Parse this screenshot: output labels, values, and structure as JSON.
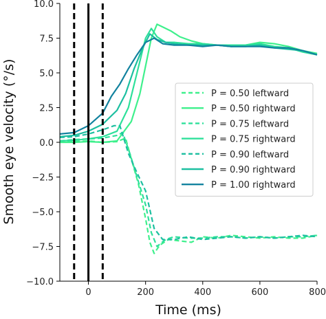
{
  "chart_data": {
    "type": "line",
    "xlabel": "Time (ms)",
    "ylabel": "Smooth eye velocity (°/s)",
    "xlim": [
      -100,
      800
    ],
    "ylim": [
      -10,
      10
    ],
    "x_ticks": [
      0,
      200,
      400,
      600,
      800
    ],
    "y_ticks": [
      -10.0,
      -7.5,
      -5.0,
      -2.5,
      0.0,
      2.5,
      5.0,
      7.5,
      10.0
    ],
    "x_tick_labels": [
      "0",
      "200",
      "400",
      "600",
      "800"
    ],
    "y_tick_labels": [
      "−10.0",
      "−7.5",
      "−5.0",
      "−2.5",
      "0.0",
      "2.5",
      "5.0",
      "7.5",
      "10.0"
    ],
    "legend_position": "center-right",
    "grid": false,
    "vertical_lines": [
      {
        "x": -50,
        "style": "dashed",
        "color": "#000000"
      },
      {
        "x": 0,
        "style": "solid",
        "color": "#000000"
      },
      {
        "x": 50,
        "style": "dashed",
        "color": "#000000"
      }
    ],
    "series": [
      {
        "name": "P = 0.50 leftward",
        "color": "#3ef08c",
        "dash": "dashed",
        "x": [
          -100,
          -50,
          0,
          50,
          100,
          130,
          150,
          175,
          200,
          215,
          230,
          250,
          280,
          320,
          360,
          400,
          450,
          500,
          550,
          600,
          650,
          700,
          750,
          800
        ],
        "y": [
          0.0,
          0.05,
          0.1,
          0.0,
          0.05,
          0.3,
          -1.2,
          -3.0,
          -5.5,
          -7.2,
          -8.0,
          -7.4,
          -7.0,
          -7.1,
          -7.2,
          -6.8,
          -6.9,
          -6.7,
          -6.8,
          -6.9,
          -6.8,
          -6.9,
          -6.9,
          -6.7
        ]
      },
      {
        "name": "P = 0.50 rightward",
        "color": "#3ef08c",
        "dash": "solid",
        "x": [
          -100,
          -50,
          0,
          50,
          100,
          150,
          180,
          200,
          220,
          240,
          260,
          290,
          320,
          360,
          400,
          450,
          500,
          550,
          600,
          650,
          700,
          750,
          800
        ],
        "y": [
          0.0,
          0.0,
          0.05,
          0.0,
          0.1,
          1.5,
          3.5,
          5.5,
          7.5,
          8.5,
          8.3,
          8.0,
          7.6,
          7.3,
          7.1,
          7.0,
          6.9,
          7.0,
          7.2,
          7.1,
          6.9,
          6.6,
          6.4
        ]
      },
      {
        "name": "P = 0.75 leftward",
        "color": "#2de09a",
        "dash": "dashed",
        "x": [
          -100,
          -50,
          0,
          50,
          100,
          120,
          145,
          170,
          200,
          220,
          240,
          270,
          300,
          350,
          400,
          450,
          500,
          550,
          600,
          650,
          700,
          750,
          800
        ],
        "y": [
          0.1,
          0.2,
          0.25,
          0.3,
          0.5,
          0.7,
          -0.8,
          -2.5,
          -4.5,
          -6.5,
          -7.5,
          -7.0,
          -6.8,
          -6.9,
          -6.9,
          -6.8,
          -6.8,
          -6.9,
          -6.8,
          -6.9,
          -6.8,
          -6.8,
          -6.7
        ]
      },
      {
        "name": "P = 0.75 rightward",
        "color": "#2de09a",
        "dash": "solid",
        "x": [
          -100,
          -50,
          0,
          50,
          100,
          140,
          170,
          200,
          220,
          240,
          270,
          300,
          350,
          400,
          450,
          500,
          550,
          600,
          650,
          700,
          750,
          800
        ],
        "y": [
          0.1,
          0.15,
          0.25,
          0.4,
          0.8,
          2.5,
          5.0,
          7.5,
          8.2,
          7.6,
          7.2,
          7.2,
          7.1,
          7.1,
          7.0,
          7.0,
          7.0,
          7.1,
          6.9,
          6.8,
          6.5,
          6.3
        ]
      },
      {
        "name": "P = 0.90 leftward",
        "color": "#1cbfa0",
        "dash": "dashed",
        "x": [
          -100,
          -50,
          0,
          50,
          90,
          110,
          140,
          170,
          200,
          230,
          260,
          300,
          350,
          400,
          450,
          500,
          550,
          600,
          650,
          700,
          750,
          800
        ],
        "y": [
          0.35,
          0.4,
          0.6,
          0.9,
          1.2,
          1.2,
          -0.8,
          -2.2,
          -3.5,
          -6.2,
          -7.0,
          -7.0,
          -6.8,
          -7.0,
          -6.9,
          -6.8,
          -6.9,
          -6.8,
          -6.9,
          -6.8,
          -6.7,
          -6.8
        ]
      },
      {
        "name": "P = 0.90 rightward",
        "color": "#1cbfa0",
        "dash": "solid",
        "x": [
          -100,
          -50,
          0,
          50,
          100,
          130,
          160,
          190,
          215,
          240,
          270,
          300,
          350,
          400,
          450,
          500,
          550,
          600,
          650,
          700,
          750,
          800
        ],
        "y": [
          0.4,
          0.5,
          0.8,
          1.3,
          2.3,
          3.5,
          5.3,
          6.8,
          7.8,
          7.4,
          7.2,
          7.1,
          7.0,
          7.0,
          7.0,
          6.9,
          6.9,
          7.0,
          6.8,
          6.7,
          6.6,
          6.3
        ]
      },
      {
        "name": "P = 1.00 rightward",
        "color": "#11829e",
        "dash": "solid",
        "x": [
          -100,
          -50,
          0,
          50,
          80,
          110,
          140,
          170,
          200,
          230,
          260,
          300,
          350,
          400,
          450,
          500,
          550,
          600,
          650,
          700,
          750,
          800
        ],
        "y": [
          0.6,
          0.7,
          1.2,
          2.1,
          3.3,
          4.2,
          5.3,
          6.3,
          7.2,
          7.5,
          7.1,
          7.0,
          7.0,
          6.9,
          7.0,
          6.9,
          6.9,
          6.9,
          6.8,
          6.8,
          6.6,
          6.3
        ]
      }
    ]
  }
}
